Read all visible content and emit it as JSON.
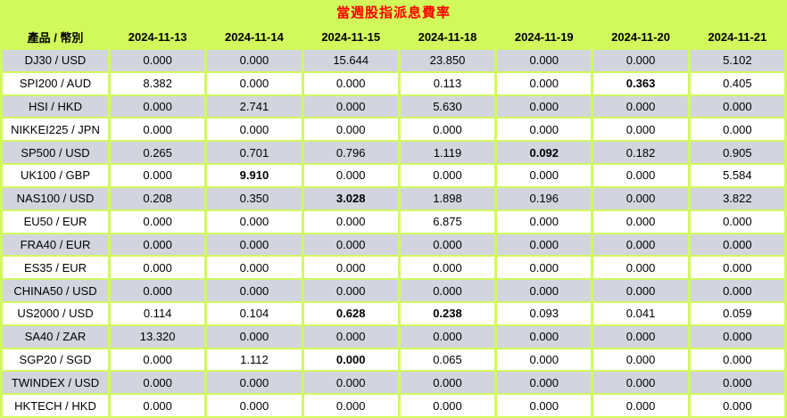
{
  "title": "當週股指派息費率",
  "colors": {
    "background_green": "#D1F95C",
    "title_red": "#FF0000",
    "row_gray": "#D2D5DE",
    "row_white": "#FFFFFF",
    "text": "#000000"
  },
  "table": {
    "header": [
      "產品 / 幣別",
      "2024-11-13",
      "2024-11-14",
      "2024-11-15",
      "2024-11-18",
      "2024-11-19",
      "2024-11-20",
      "2024-11-21"
    ],
    "rows": [
      {
        "product": "DJ30 / USD",
        "values": [
          "0.000",
          "0.000",
          "15.644",
          "23.850",
          "0.000",
          "0.000",
          "5.102"
        ],
        "bold": []
      },
      {
        "product": "SPI200 / AUD",
        "values": [
          "8.382",
          "0.000",
          "0.000",
          "0.113",
          "0.000",
          "0.363",
          "0.405"
        ],
        "bold": [
          5
        ]
      },
      {
        "product": "HSI / HKD",
        "values": [
          "0.000",
          "2.741",
          "0.000",
          "5.630",
          "0.000",
          "0.000",
          "0.000"
        ],
        "bold": []
      },
      {
        "product": "NIKKEI225 / JPN",
        "values": [
          "0.000",
          "0.000",
          "0.000",
          "0.000",
          "0.000",
          "0.000",
          "0.000"
        ],
        "bold": []
      },
      {
        "product": "SP500 / USD",
        "values": [
          "0.265",
          "0.701",
          "0.796",
          "1.119",
          "0.092",
          "0.182",
          "0.905"
        ],
        "bold": [
          4
        ]
      },
      {
        "product": "UK100 / GBP",
        "values": [
          "0.000",
          "9.910",
          "0.000",
          "0.000",
          "0.000",
          "0.000",
          "5.584"
        ],
        "bold": [
          1
        ]
      },
      {
        "product": "NAS100 / USD",
        "values": [
          "0.208",
          "0.350",
          "3.028",
          "1.898",
          "0.196",
          "0.000",
          "3.822"
        ],
        "bold": [
          2
        ]
      },
      {
        "product": "EU50 / EUR",
        "values": [
          "0.000",
          "0.000",
          "0.000",
          "6.875",
          "0.000",
          "0.000",
          "0.000"
        ],
        "bold": []
      },
      {
        "product": "FRA40 / EUR",
        "values": [
          "0.000",
          "0.000",
          "0.000",
          "0.000",
          "0.000",
          "0.000",
          "0.000"
        ],
        "bold": []
      },
      {
        "product": "ES35 / EUR",
        "values": [
          "0.000",
          "0.000",
          "0.000",
          "0.000",
          "0.000",
          "0.000",
          "0.000"
        ],
        "bold": []
      },
      {
        "product": "CHINA50 / USD",
        "values": [
          "0.000",
          "0.000",
          "0.000",
          "0.000",
          "0.000",
          "0.000",
          "0.000"
        ],
        "bold": []
      },
      {
        "product": "US2000 / USD",
        "values": [
          "0.114",
          "0.104",
          "0.628",
          "0.238",
          "0.093",
          "0.041",
          "0.059"
        ],
        "bold": [
          2,
          3
        ]
      },
      {
        "product": "SA40 / ZAR",
        "values": [
          "13.320",
          "0.000",
          "0.000",
          "0.000",
          "0.000",
          "0.000",
          "0.000"
        ],
        "bold": []
      },
      {
        "product": "SGP20 / SGD",
        "values": [
          "0.000",
          "1.112",
          "0.000",
          "0.065",
          "0.000",
          "0.000",
          "0.000"
        ],
        "bold": [
          2
        ]
      },
      {
        "product": "TWINDEX / USD",
        "values": [
          "0.000",
          "0.000",
          "0.000",
          "0.000",
          "0.000",
          "0.000",
          "0.000"
        ],
        "bold": []
      },
      {
        "product": "HKTECH / HKD",
        "values": [
          "0.000",
          "0.000",
          "0.000",
          "0.000",
          "0.000",
          "0.000",
          "0.000"
        ],
        "bold": []
      }
    ]
  }
}
